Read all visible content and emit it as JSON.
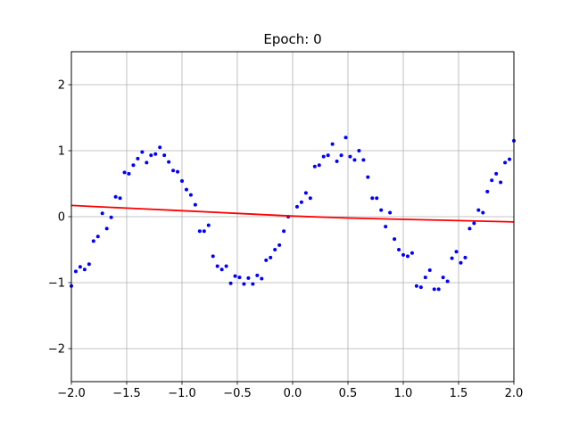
{
  "chart_data": {
    "type": "scatter",
    "title": "Epoch: 0",
    "xlabel": "",
    "ylabel": "",
    "xlim": [
      -2.0,
      2.0
    ],
    "ylim": [
      -2.5,
      2.5
    ],
    "grid": true,
    "legend": "none",
    "x_ticks": [
      -2.0,
      -1.5,
      -1.0,
      -0.5,
      0.0,
      0.5,
      1.0,
      1.5,
      2.0
    ],
    "x_tick_labels": [
      "−2.0",
      "−1.5",
      "−1.0",
      "−0.5",
      "0.0",
      "0.5",
      "1.0",
      "1.5",
      "2.0"
    ],
    "y_ticks": [
      -2,
      -1,
      0,
      1,
      2
    ],
    "y_tick_labels": [
      "−2",
      "−1",
      "0",
      "1",
      "2"
    ],
    "series": [
      {
        "kind": "scatter",
        "color": "#0000ff",
        "points": [
          [
            -2.0,
            -1.05
          ],
          [
            -1.96,
            -0.83
          ],
          [
            -1.92,
            -0.76
          ],
          [
            -1.88,
            -0.8
          ],
          [
            -1.84,
            -0.72
          ],
          [
            -1.8,
            -0.37
          ],
          [
            -1.76,
            -0.3
          ],
          [
            -1.72,
            0.05
          ],
          [
            -1.68,
            -0.18
          ],
          [
            -1.64,
            -0.01
          ],
          [
            -1.6,
            0.3
          ],
          [
            -1.56,
            0.28
          ],
          [
            -1.52,
            0.67
          ],
          [
            -1.48,
            0.65
          ],
          [
            -1.44,
            0.78
          ],
          [
            -1.4,
            0.88
          ],
          [
            -1.36,
            0.98
          ],
          [
            -1.32,
            0.82
          ],
          [
            -1.28,
            0.93
          ],
          [
            -1.24,
            0.95
          ],
          [
            -1.2,
            1.05
          ],
          [
            -1.16,
            0.93
          ],
          [
            -1.12,
            0.83
          ],
          [
            -1.08,
            0.7
          ],
          [
            -1.04,
            0.68
          ],
          [
            -1.0,
            0.54
          ],
          [
            -0.96,
            0.41
          ],
          [
            -0.92,
            0.33
          ],
          [
            -0.88,
            0.18
          ],
          [
            -0.84,
            -0.22
          ],
          [
            -0.8,
            -0.22
          ],
          [
            -0.76,
            -0.13
          ],
          [
            -0.72,
            -0.6
          ],
          [
            -0.68,
            -0.75
          ],
          [
            -0.64,
            -0.8
          ],
          [
            -0.6,
            -0.75
          ],
          [
            -0.56,
            -1.01
          ],
          [
            -0.52,
            -0.9
          ],
          [
            -0.48,
            -0.92
          ],
          [
            -0.44,
            -1.02
          ],
          [
            -0.4,
            -0.93
          ],
          [
            -0.36,
            -1.02
          ],
          [
            -0.32,
            -0.89
          ],
          [
            -0.28,
            -0.94
          ],
          [
            -0.24,
            -0.66
          ],
          [
            -0.2,
            -0.62
          ],
          [
            -0.16,
            -0.5
          ],
          [
            -0.12,
            -0.43
          ],
          [
            -0.08,
            -0.22
          ],
          [
            -0.04,
            0.0
          ],
          [
            0.04,
            0.15
          ],
          [
            0.08,
            0.22
          ],
          [
            0.12,
            0.36
          ],
          [
            0.16,
            0.28
          ],
          [
            0.2,
            0.76
          ],
          [
            0.24,
            0.78
          ],
          [
            0.28,
            0.91
          ],
          [
            0.32,
            0.93
          ],
          [
            0.36,
            1.1
          ],
          [
            0.4,
            0.84
          ],
          [
            0.44,
            0.93
          ],
          [
            0.48,
            1.2
          ],
          [
            0.52,
            0.91
          ],
          [
            0.56,
            0.86
          ],
          [
            0.6,
            1.0
          ],
          [
            0.64,
            0.86
          ],
          [
            0.68,
            0.6
          ],
          [
            0.72,
            0.28
          ],
          [
            0.76,
            0.28
          ],
          [
            0.8,
            0.1
          ],
          [
            0.84,
            -0.15
          ],
          [
            0.88,
            0.06
          ],
          [
            0.92,
            -0.34
          ],
          [
            0.96,
            -0.5
          ],
          [
            1.0,
            -0.58
          ],
          [
            1.04,
            -0.6
          ],
          [
            1.08,
            -0.55
          ],
          [
            1.12,
            -1.05
          ],
          [
            1.16,
            -1.07
          ],
          [
            1.2,
            -0.92
          ],
          [
            1.24,
            -0.81
          ],
          [
            1.28,
            -1.1
          ],
          [
            1.32,
            -1.1
          ],
          [
            1.36,
            -0.92
          ],
          [
            1.4,
            -0.98
          ],
          [
            1.44,
            -0.63
          ],
          [
            1.48,
            -0.53
          ],
          [
            1.52,
            -0.7
          ],
          [
            1.56,
            -0.62
          ],
          [
            1.6,
            -0.18
          ],
          [
            1.64,
            -0.1
          ],
          [
            1.68,
            0.1
          ],
          [
            1.72,
            0.06
          ],
          [
            1.76,
            0.38
          ],
          [
            1.8,
            0.55
          ],
          [
            1.84,
            0.65
          ],
          [
            1.88,
            0.52
          ],
          [
            1.92,
            0.82
          ],
          [
            1.96,
            0.87
          ],
          [
            2.0,
            1.15
          ]
        ]
      },
      {
        "kind": "line",
        "color": "#ff0000",
        "points": [
          [
            -2.0,
            0.17
          ],
          [
            -1.5,
            0.13
          ],
          [
            -1.0,
            0.09
          ],
          [
            -0.5,
            0.05
          ],
          [
            0.0,
            0.01
          ],
          [
            0.5,
            -0.02
          ],
          [
            1.0,
            -0.04
          ],
          [
            1.5,
            -0.06
          ],
          [
            2.0,
            -0.08
          ]
        ]
      }
    ]
  }
}
